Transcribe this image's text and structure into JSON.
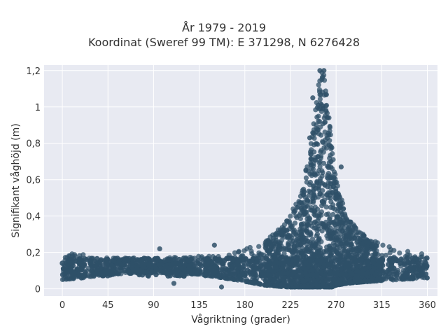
{
  "chart": {
    "title": "År 1979 - 2019",
    "subtitle": "Koordinat (Sweref 99 TM): E 371298, N 6276428",
    "xlabel": "Vågriktning (grader)",
    "ylabel": "Signifikant våghöjd (m)"
  },
  "colors": {
    "plot_bg": "#e8eaf2",
    "grid": "#ffffff",
    "marker": "#2f5068"
  },
  "chart_data": {
    "type": "scatter",
    "title": "År 1979 - 2019",
    "subtitle": "Koordinat (Sweref 99 TM): E 371298, N 6276428",
    "xlabel": "Vågriktning (grader)",
    "ylabel": "Signifikant våghöjd (m)",
    "xlim": [
      -18,
      370
    ],
    "ylim": [
      -0.04,
      1.23
    ],
    "x_ticks": [
      0,
      45,
      90,
      135,
      180,
      225,
      270,
      315,
      360
    ],
    "x_tick_labels": [
      "0",
      "45",
      "90",
      "135",
      "180",
      "225",
      "270",
      "315",
      "360"
    ],
    "y_ticks": [
      0,
      0.2,
      0.4,
      0.6,
      0.8,
      1.0,
      1.2
    ],
    "y_tick_labels": [
      "0",
      "0,2",
      "0,4",
      "0,6",
      "0,8",
      "1",
      "1,2"
    ],
    "grid": true,
    "legend": "none",
    "envelope": {
      "x": [
        0,
        20,
        45,
        90,
        135,
        170,
        200,
        220,
        235,
        245,
        250,
        255,
        258,
        262,
        266,
        270,
        280,
        300,
        330,
        360
      ],
      "y_max": [
        0.2,
        0.19,
        0.17,
        0.17,
        0.18,
        0.2,
        0.26,
        0.36,
        0.52,
        0.78,
        1.05,
        1.2,
        1.2,
        1.02,
        0.78,
        0.62,
        0.4,
        0.28,
        0.22,
        0.2
      ],
      "y_min": [
        0.05,
        0.06,
        0.08,
        0.09,
        0.08,
        0.05,
        0.02,
        0.01,
        0.01,
        0.01,
        0.01,
        0.01,
        0.01,
        0.01,
        0.01,
        0.02,
        0.03,
        0.04,
        0.05,
        0.06
      ]
    },
    "notable_points": [
      {
        "x": 254,
        "y": 1.2
      },
      {
        "x": 258,
        "y": 1.2
      },
      {
        "x": 247,
        "y": 1.05
      },
      {
        "x": 275,
        "y": 0.67
      },
      {
        "x": 244,
        "y": 0.83
      },
      {
        "x": 265,
        "y": 0.7
      },
      {
        "x": 96,
        "y": 0.22
      },
      {
        "x": 150,
        "y": 0.24
      },
      {
        "x": 110,
        "y": 0.03
      },
      {
        "x": 157,
        "y": 0.01
      }
    ]
  }
}
